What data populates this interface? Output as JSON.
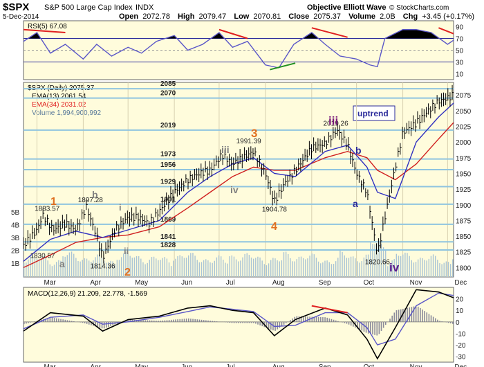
{
  "header": {
    "symbol": "$SPX",
    "name": "S&P 500 Large Cap Index",
    "exchange": "INDX",
    "date": "5-Dec-2014",
    "open_label": "Open",
    "open": "2072.78",
    "high_label": "High",
    "high": "2079.47",
    "low_label": "Low",
    "low": "2070.81",
    "close_label": "Close",
    "close": "2075.37",
    "volume_label": "Volume",
    "volume": "2.0B",
    "chg_label": "Chg",
    "chg": "+3.45 (+0.17%)",
    "source": "Objective Elliott Wave",
    "copyright": "© StockCharts.com"
  },
  "chart_data": [
    {
      "type": "line",
      "panel": "rsi",
      "legend": "RSI(5) 67.08",
      "yticks": [
        10,
        30,
        50,
        70,
        90
      ],
      "ylim": [
        0,
        100
      ],
      "reference_lines": [
        30,
        70
      ],
      "line_color": "#5a56c8",
      "overbought_fill": "#000000",
      "divergence_color": "#e02020",
      "x": [
        "Feb 20",
        "Mar 1",
        "Mar 10",
        "Mar 20",
        "Apr 1",
        "Apr 10",
        "Apr 20",
        "May 1",
        "May 10",
        "May 20",
        "Jun 1",
        "Jun 10",
        "Jun 20",
        "Jul 1",
        "Jul 10",
        "Jul 20",
        "Aug 1",
        "Aug 10",
        "Aug 20",
        "Sep 1",
        "Sep 10",
        "Sep 20",
        "Oct 1",
        "Oct 10",
        "Oct 15",
        "Oct 20",
        "Nov 1",
        "Nov 10",
        "Nov 20",
        "Dec 1",
        "Dec 5"
      ],
      "values": [
        65,
        80,
        45,
        60,
        35,
        60,
        40,
        55,
        45,
        65,
        75,
        50,
        60,
        80,
        55,
        65,
        25,
        20,
        60,
        80,
        60,
        40,
        35,
        25,
        22,
        70,
        85,
        85,
        80,
        60,
        67
      ]
    },
    {
      "type": "line",
      "panel": "price",
      "title_legend": "$SPX (Daily) 2075.37",
      "legend": [
        {
          "name": "EMA(13) 2061.54",
          "color": "#000000"
        },
        {
          "name": "EMA(34) 2031.02",
          "color": "#e02020"
        },
        {
          "name": "Volume 1,994,900,992",
          "color": "#a9c4d6"
        }
      ],
      "price_color": "#000000",
      "price_style": "ohlc",
      "ema13_color": "#3030c0",
      "ema34_color": "#d02020",
      "yticks": [
        1800,
        1825,
        1850,
        1875,
        1900,
        1925,
        1950,
        1975,
        2000,
        2025,
        2050,
        2075
      ],
      "ylim": [
        1785,
        2095
      ],
      "volume_ticks": [
        "1B",
        "2B",
        "3B",
        "4B",
        "5B"
      ],
      "xticks": [
        "Mar",
        "Apr",
        "May",
        "Jun",
        "Jul",
        "Aug",
        "Sep",
        "Oct",
        "Nov",
        "Dec"
      ],
      "levels": [
        {
          "label": "2085",
          "value": 2085
        },
        {
          "label": "2070",
          "value": 2070
        },
        {
          "label": "2019",
          "value": 2019
        },
        {
          "label": "1973",
          "value": 1973
        },
        {
          "label": "1956",
          "value": 1956
        },
        {
          "label": "1929",
          "value": 1929
        },
        {
          "label": "1901",
          "value": 1901
        },
        {
          "label": "1869",
          "value": 1869
        },
        {
          "label": "1841",
          "value": 1841
        },
        {
          "label": "1828",
          "value": 1828
        }
      ],
      "level_color": "#8fc4e0",
      "series": [
        {
          "name": "price",
          "x": [
            "Feb 20",
            "Mar 1",
            "Mar 5",
            "Mar 12",
            "Mar 20",
            "Mar 27",
            "Apr 3",
            "Apr 10",
            "Apr 14",
            "Apr 22",
            "May 1",
            "May 8",
            "May 15",
            "May 22",
            "Jun 1",
            "Jun 10",
            "Jun 18",
            "Jun 25",
            "Jul 3",
            "Jul 10",
            "Jul 17",
            "Jul 24",
            "Aug 1",
            "Aug 7",
            "Aug 14",
            "Aug 21",
            "Sep 1",
            "Sep 10",
            "Sep 18",
            "Sep 25",
            "Oct 1",
            "Oct 8",
            "Oct 15",
            "Oct 20",
            "Oct 27",
            "Nov 1",
            "Nov 10",
            "Nov 18",
            "Nov 25",
            "Dec 1",
            "Dec 5"
          ],
          "values": [
            1835,
            1860,
            1883,
            1860,
            1870,
            1860,
            1897,
            1850,
            1815,
            1860,
            1880,
            1880,
            1870,
            1890,
            1920,
            1940,
            1950,
            1955,
            1980,
            1965,
            1975,
            1985,
            1950,
            1905,
            1935,
            1955,
            1990,
            1998,
            2019,
            1995,
            1950,
            1920,
            1821,
            1880,
            1960,
            2015,
            2030,
            2050,
            2065,
            2070,
            2075
          ]
        },
        {
          "name": "EMA(13)",
          "x": [
            "Feb 20",
            "Mar 10",
            "Mar 27",
            "Apr 14",
            "May 1",
            "May 22",
            "Jun 10",
            "Jun 25",
            "Jul 10",
            "Jul 24",
            "Aug 7",
            "Aug 21",
            "Sep 10",
            "Sep 25",
            "Oct 8",
            "Oct 15",
            "Oct 27",
            "Nov 10",
            "Nov 25",
            "Dec 5"
          ],
          "values": [
            1810,
            1845,
            1858,
            1848,
            1860,
            1875,
            1920,
            1945,
            1965,
            1975,
            1950,
            1945,
            1985,
            1995,
            1960,
            1920,
            1910,
            2000,
            2040,
            2062
          ]
        },
        {
          "name": "EMA(34)",
          "x": [
            "Feb 20",
            "Mar 10",
            "Mar 27",
            "Apr 14",
            "May 1",
            "May 22",
            "Jun 10",
            "Jun 25",
            "Jul 10",
            "Jul 24",
            "Aug 7",
            "Aug 21",
            "Sep 10",
            "Sep 25",
            "Oct 8",
            "Oct 15",
            "Oct 27",
            "Nov 10",
            "Nov 25",
            "Dec 5"
          ],
          "values": [
            1800,
            1820,
            1840,
            1848,
            1852,
            1865,
            1895,
            1920,
            1945,
            1960,
            1955,
            1955,
            1975,
            1985,
            1975,
            1955,
            1940,
            1965,
            2005,
            2031
          ]
        }
      ],
      "annotations": [
        {
          "text": "1883.57",
          "x": "Mar 5",
          "y": 1883.57
        },
        {
          "text": "1897.28",
          "x": "Apr 3",
          "y": 1897.28
        },
        {
          "text": "1830.57",
          "x": "Mar 1",
          "y": 1830.57
        },
        {
          "text": "1814.36",
          "x": "Apr 14",
          "y": 1814.36
        },
        {
          "text": "1991.39",
          "x": "Jul 24",
          "y": 1991.39
        },
        {
          "text": "1904.78",
          "x": "Aug 7",
          "y": 1904.78
        },
        {
          "text": "2019.26",
          "x": "Sep 18",
          "y": 2019.26
        },
        {
          "text": "1820.66",
          "x": "Oct 15",
          "y": 1820.66
        }
      ],
      "wave_labels": [
        {
          "text": "1",
          "color": "#e07020"
        },
        {
          "text": "2",
          "color": "#e07020"
        },
        {
          "text": "3",
          "color": "#e07020"
        },
        {
          "text": "4",
          "color": "#e07020"
        },
        {
          "text": "a",
          "color": "#808080"
        },
        {
          "text": "b",
          "color": "#808080"
        },
        {
          "text": "i",
          "color": "#808080"
        },
        {
          "text": "ii",
          "color": "#808080"
        },
        {
          "text": "iii",
          "color": "#808080"
        },
        {
          "text": "iv",
          "color": "#808080"
        },
        {
          "text": "iii",
          "color": "#7a1a7a"
        },
        {
          "text": "iv",
          "color": "#5a1a8a"
        },
        {
          "text": "a",
          "color": "#2a2a9a"
        },
        {
          "text": "b",
          "color": "#2a2a9a"
        }
      ],
      "trend_box": "uptrend"
    },
    {
      "type": "area",
      "panel": "macd",
      "legend": "MACD(12,26,9) 21.209, 22.778, -1.569",
      "yticks": [
        -30,
        -20,
        -10,
        0,
        10,
        20
      ],
      "ylim": [
        -35,
        30
      ],
      "histogram_color": "#8a8a9a",
      "macd_color": "#000000",
      "signal_color": "#5a56c8",
      "x": [
        "Feb 20",
        "Mar 10",
        "Apr 1",
        "Apr 14",
        "May 1",
        "May 22",
        "Jun 10",
        "Jun 25",
        "Jul 10",
        "Jul 24",
        "Aug 7",
        "Aug 21",
        "Sep 10",
        "Sep 25",
        "Oct 8",
        "Oct 15",
        "Oct 27",
        "Nov 10",
        "Nov 25",
        "Dec 5"
      ],
      "macd": [
        -8,
        8,
        5,
        -8,
        2,
        5,
        12,
        14,
        10,
        8,
        -12,
        2,
        12,
        6,
        -15,
        -32,
        -5,
        28,
        26,
        21
      ],
      "signal": [
        -6,
        4,
        6,
        -2,
        0,
        4,
        9,
        13,
        11,
        9,
        -4,
        -3,
        8,
        8,
        -5,
        -20,
        -15,
        14,
        25,
        23
      ]
    }
  ]
}
